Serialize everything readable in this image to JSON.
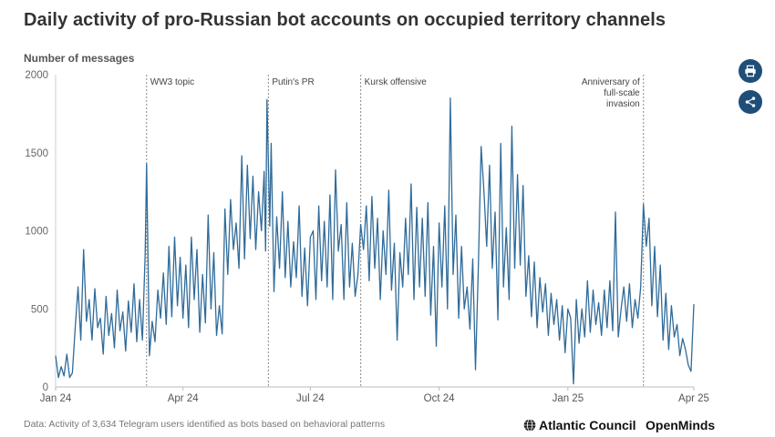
{
  "title": "Daily activity of pro-Russian bot accounts on occupied territory channels",
  "unit_label": "Number of messages",
  "footer_note": "Data: Activity of 3,634 Telegram users identified as bots based on behavioral patterns",
  "brand_atlantic": "Atlantic Council",
  "brand_openminds": "OpenMinds",
  "buttons": {
    "print_icon": "printer-icon",
    "share_icon": "share-icon"
  },
  "colors": {
    "line": "#2f6b9a",
    "accent_button": "#1f4e79",
    "annotation": "#888888"
  },
  "chart_data": {
    "type": "line",
    "title": "Daily activity of pro-Russian bot accounts on occupied territory channels",
    "ylabel": "Number of messages",
    "ylim": [
      0,
      2000
    ],
    "yticks": [
      0,
      500,
      1000,
      1500,
      2000
    ],
    "xlim": [
      "2024-01-01",
      "2025-04-01"
    ],
    "xticks": [
      {
        "date": "2024-01-01",
        "label": "Jan 24"
      },
      {
        "date": "2024-04-01",
        "label": "Apr 24"
      },
      {
        "date": "2024-07-01",
        "label": "Jul 24"
      },
      {
        "date": "2024-10-01",
        "label": "Oct 24"
      },
      {
        "date": "2025-01-01",
        "label": "Jan 25"
      },
      {
        "date": "2025-04-01",
        "label": "Apr 25"
      }
    ],
    "annotations": [
      {
        "date": "2024-03-06",
        "label": [
          "WW3 topic"
        ]
      },
      {
        "date": "2024-06-01",
        "label": [
          "Putin's PR"
        ]
      },
      {
        "date": "2024-08-06",
        "label": [
          "Kursk offensive"
        ]
      },
      {
        "date": "2025-02-24",
        "label": [
          "Anniversary of",
          "full-scale",
          "invasion"
        ]
      }
    ],
    "grid": false,
    "series": [
      {
        "values": [
          [
            "2024-01-01",
            200
          ],
          [
            "2024-01-03",
            60
          ],
          [
            "2024-01-05",
            130
          ],
          [
            "2024-01-07",
            70
          ],
          [
            "2024-01-09",
            210
          ],
          [
            "2024-01-11",
            60
          ],
          [
            "2024-01-13",
            90
          ],
          [
            "2024-01-15",
            380
          ],
          [
            "2024-01-17",
            640
          ],
          [
            "2024-01-19",
            300
          ],
          [
            "2024-01-21",
            880
          ],
          [
            "2024-01-23",
            420
          ],
          [
            "2024-01-25",
            560
          ],
          [
            "2024-01-27",
            300
          ],
          [
            "2024-01-29",
            630
          ],
          [
            "2024-01-31",
            380
          ],
          [
            "2024-02-02",
            440
          ],
          [
            "2024-02-04",
            210
          ],
          [
            "2024-02-06",
            580
          ],
          [
            "2024-02-08",
            330
          ],
          [
            "2024-02-10",
            470
          ],
          [
            "2024-02-12",
            250
          ],
          [
            "2024-02-14",
            620
          ],
          [
            "2024-02-16",
            360
          ],
          [
            "2024-02-18",
            480
          ],
          [
            "2024-02-20",
            230
          ],
          [
            "2024-02-22",
            550
          ],
          [
            "2024-02-24",
            350
          ],
          [
            "2024-02-26",
            660
          ],
          [
            "2024-02-28",
            290
          ],
          [
            "2024-03-01",
            560
          ],
          [
            "2024-03-03",
            300
          ],
          [
            "2024-03-05",
            850
          ],
          [
            "2024-03-06",
            1430
          ],
          [
            "2024-03-08",
            200
          ],
          [
            "2024-03-10",
            420
          ],
          [
            "2024-03-12",
            290
          ],
          [
            "2024-03-14",
            620
          ],
          [
            "2024-03-16",
            440
          ],
          [
            "2024-03-18",
            730
          ],
          [
            "2024-03-20",
            400
          ],
          [
            "2024-03-22",
            900
          ],
          [
            "2024-03-24",
            450
          ],
          [
            "2024-03-26",
            960
          ],
          [
            "2024-03-28",
            520
          ],
          [
            "2024-03-30",
            830
          ],
          [
            "2024-04-01",
            440
          ],
          [
            "2024-04-03",
            780
          ],
          [
            "2024-04-05",
            380
          ],
          [
            "2024-04-07",
            960
          ],
          [
            "2024-04-09",
            560
          ],
          [
            "2024-04-11",
            880
          ],
          [
            "2024-04-13",
            350
          ],
          [
            "2024-04-15",
            720
          ],
          [
            "2024-04-17",
            410
          ],
          [
            "2024-04-19",
            1100
          ],
          [
            "2024-04-21",
            500
          ],
          [
            "2024-04-23",
            860
          ],
          [
            "2024-04-25",
            330
          ],
          [
            "2024-04-27",
            520
          ],
          [
            "2024-04-29",
            340
          ],
          [
            "2024-05-01",
            1140
          ],
          [
            "2024-05-03",
            720
          ],
          [
            "2024-05-05",
            1200
          ],
          [
            "2024-05-07",
            880
          ],
          [
            "2024-05-09",
            1050
          ],
          [
            "2024-05-11",
            760
          ],
          [
            "2024-05-13",
            1480
          ],
          [
            "2024-05-15",
            820
          ],
          [
            "2024-05-17",
            1420
          ],
          [
            "2024-05-19",
            950
          ],
          [
            "2024-05-21",
            1350
          ],
          [
            "2024-05-23",
            880
          ],
          [
            "2024-05-25",
            1250
          ],
          [
            "2024-05-27",
            1000
          ],
          [
            "2024-05-29",
            1380
          ],
          [
            "2024-05-30",
            870
          ],
          [
            "2024-05-31",
            1840
          ],
          [
            "2024-06-02",
            1030
          ],
          [
            "2024-06-03",
            1560
          ],
          [
            "2024-06-05",
            610
          ],
          [
            "2024-06-07",
            1090
          ],
          [
            "2024-06-09",
            760
          ],
          [
            "2024-06-11",
            1250
          ],
          [
            "2024-06-13",
            700
          ],
          [
            "2024-06-15",
            1060
          ],
          [
            "2024-06-17",
            640
          ],
          [
            "2024-06-19",
            930
          ],
          [
            "2024-06-21",
            700
          ],
          [
            "2024-06-23",
            1160
          ],
          [
            "2024-06-25",
            580
          ],
          [
            "2024-06-27",
            890
          ],
          [
            "2024-06-29",
            520
          ],
          [
            "2024-07-01",
            960
          ],
          [
            "2024-07-03",
            1000
          ],
          [
            "2024-07-05",
            560
          ],
          [
            "2024-07-07",
            1160
          ],
          [
            "2024-07-09",
            680
          ],
          [
            "2024-07-11",
            1060
          ],
          [
            "2024-07-13",
            640
          ],
          [
            "2024-07-15",
            1230
          ],
          [
            "2024-07-17",
            560
          ],
          [
            "2024-07-19",
            1390
          ],
          [
            "2024-07-21",
            870
          ],
          [
            "2024-07-23",
            1040
          ],
          [
            "2024-07-25",
            560
          ],
          [
            "2024-07-27",
            1180
          ],
          [
            "2024-07-29",
            640
          ],
          [
            "2024-07-31",
            920
          ],
          [
            "2024-08-02",
            580
          ],
          [
            "2024-08-04",
            720
          ],
          [
            "2024-08-06",
            1040
          ],
          [
            "2024-08-08",
            880
          ],
          [
            "2024-08-10",
            1160
          ],
          [
            "2024-08-12",
            680
          ],
          [
            "2024-08-14",
            1220
          ],
          [
            "2024-08-16",
            760
          ],
          [
            "2024-08-18",
            1080
          ],
          [
            "2024-08-20",
            560
          ],
          [
            "2024-08-22",
            1000
          ],
          [
            "2024-08-24",
            720
          ],
          [
            "2024-08-26",
            1260
          ],
          [
            "2024-08-28",
            620
          ],
          [
            "2024-08-30",
            920
          ],
          [
            "2024-09-01",
            300
          ],
          [
            "2024-09-03",
            860
          ],
          [
            "2024-09-05",
            640
          ],
          [
            "2024-09-07",
            1080
          ],
          [
            "2024-09-09",
            720
          ],
          [
            "2024-09-11",
            1300
          ],
          [
            "2024-09-13",
            560
          ],
          [
            "2024-09-15",
            1150
          ],
          [
            "2024-09-17",
            640
          ],
          [
            "2024-09-19",
            1080
          ],
          [
            "2024-09-21",
            580
          ],
          [
            "2024-09-23",
            1180
          ],
          [
            "2024-09-25",
            460
          ],
          [
            "2024-09-27",
            900
          ],
          [
            "2024-09-29",
            260
          ],
          [
            "2024-10-01",
            1050
          ],
          [
            "2024-10-03",
            640
          ],
          [
            "2024-10-05",
            1160
          ],
          [
            "2024-10-07",
            500
          ],
          [
            "2024-10-09",
            1850
          ],
          [
            "2024-10-11",
            720
          ],
          [
            "2024-10-13",
            1100
          ],
          [
            "2024-10-15",
            440
          ],
          [
            "2024-10-17",
            900
          ],
          [
            "2024-10-19",
            500
          ],
          [
            "2024-10-21",
            640
          ],
          [
            "2024-10-23",
            370
          ],
          [
            "2024-10-25",
            820
          ],
          [
            "2024-10-27",
            110
          ],
          [
            "2024-10-29",
            760
          ],
          [
            "2024-10-31",
            1540
          ],
          [
            "2024-11-02",
            1260
          ],
          [
            "2024-11-04",
            900
          ],
          [
            "2024-11-06",
            1420
          ],
          [
            "2024-11-08",
            760
          ],
          [
            "2024-11-10",
            1120
          ],
          [
            "2024-11-12",
            430
          ],
          [
            "2024-11-14",
            1560
          ],
          [
            "2024-11-16",
            640
          ],
          [
            "2024-11-18",
            1020
          ],
          [
            "2024-11-20",
            560
          ],
          [
            "2024-11-22",
            1670
          ],
          [
            "2024-11-24",
            760
          ],
          [
            "2024-11-26",
            1360
          ],
          [
            "2024-11-28",
            780
          ],
          [
            "2024-11-30",
            1290
          ],
          [
            "2024-12-02",
            580
          ],
          [
            "2024-12-04",
            840
          ],
          [
            "2024-12-06",
            450
          ],
          [
            "2024-12-08",
            800
          ],
          [
            "2024-12-10",
            380
          ],
          [
            "2024-12-12",
            700
          ],
          [
            "2024-12-14",
            480
          ],
          [
            "2024-12-16",
            660
          ],
          [
            "2024-12-18",
            330
          ],
          [
            "2024-12-20",
            600
          ],
          [
            "2024-12-22",
            400
          ],
          [
            "2024-12-24",
            560
          ],
          [
            "2024-12-26",
            300
          ],
          [
            "2024-12-28",
            520
          ],
          [
            "2024-12-30",
            220
          ],
          [
            "2025-01-01",
            500
          ],
          [
            "2025-01-03",
            440
          ],
          [
            "2025-01-05",
            20
          ],
          [
            "2025-01-07",
            560
          ],
          [
            "2025-01-09",
            280
          ],
          [
            "2025-01-11",
            500
          ],
          [
            "2025-01-13",
            320
          ],
          [
            "2025-01-15",
            680
          ],
          [
            "2025-01-17",
            350
          ],
          [
            "2025-01-19",
            620
          ],
          [
            "2025-01-21",
            400
          ],
          [
            "2025-01-23",
            540
          ],
          [
            "2025-01-25",
            330
          ],
          [
            "2025-01-27",
            620
          ],
          [
            "2025-01-29",
            380
          ],
          [
            "2025-01-31",
            680
          ],
          [
            "2025-02-02",
            360
          ],
          [
            "2025-02-04",
            1120
          ],
          [
            "2025-02-06",
            320
          ],
          [
            "2025-02-08",
            500
          ],
          [
            "2025-02-10",
            640
          ],
          [
            "2025-02-12",
            420
          ],
          [
            "2025-02-14",
            660
          ],
          [
            "2025-02-16",
            380
          ],
          [
            "2025-02-18",
            560
          ],
          [
            "2025-02-20",
            440
          ],
          [
            "2025-02-22",
            640
          ],
          [
            "2025-02-24",
            1170
          ],
          [
            "2025-02-26",
            900
          ],
          [
            "2025-02-28",
            1080
          ],
          [
            "2025-03-02",
            520
          ],
          [
            "2025-03-04",
            900
          ],
          [
            "2025-03-06",
            450
          ],
          [
            "2025-03-08",
            780
          ],
          [
            "2025-03-10",
            300
          ],
          [
            "2025-03-12",
            600
          ],
          [
            "2025-03-14",
            240
          ],
          [
            "2025-03-16",
            520
          ],
          [
            "2025-03-18",
            320
          ],
          [
            "2025-03-20",
            400
          ],
          [
            "2025-03-22",
            200
          ],
          [
            "2025-03-24",
            310
          ],
          [
            "2025-03-26",
            240
          ],
          [
            "2025-03-28",
            140
          ],
          [
            "2025-03-30",
            100
          ],
          [
            "2025-04-01",
            530
          ]
        ]
      }
    ]
  }
}
